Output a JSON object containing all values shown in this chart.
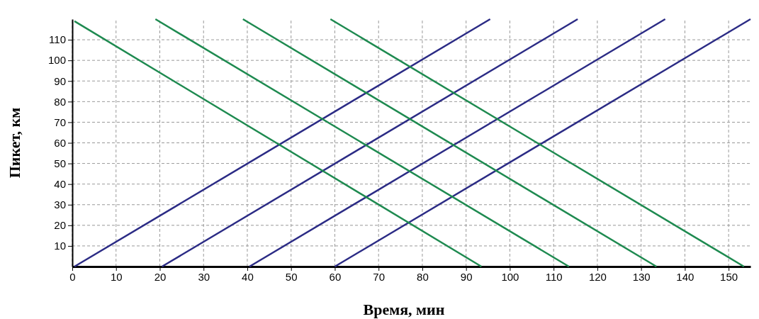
{
  "chart_data": {
    "type": "line",
    "xlabel": "Время, мин",
    "ylabel": "Пикет, км",
    "xlim": [
      0,
      155
    ],
    "ylim": [
      0,
      120
    ],
    "xticks": [
      0,
      10,
      20,
      30,
      40,
      50,
      60,
      70,
      80,
      90,
      100,
      110,
      120,
      130,
      140,
      150
    ],
    "yticks": [
      10,
      20,
      30,
      40,
      50,
      60,
      70,
      80,
      90,
      100,
      110
    ],
    "grid": true,
    "line_style": "solid",
    "marker": "none",
    "series": [
      {
        "color": "#2b2b85",
        "x": [
          0.5,
          95.5
        ],
        "values": [
          0,
          120
        ]
      },
      {
        "color": "#2b2b85",
        "x": [
          20.5,
          115.5
        ],
        "values": [
          0,
          120
        ]
      },
      {
        "color": "#2b2b85",
        "x": [
          40.5,
          135.5
        ],
        "values": [
          0,
          120
        ]
      },
      {
        "color": "#2b2b85",
        "x": [
          60,
          155
        ],
        "values": [
          0,
          120
        ]
      },
      {
        "color": "#1e8a50",
        "x": [
          0.5,
          93.5
        ],
        "values": [
          119,
          0
        ]
      },
      {
        "color": "#1e8a50",
        "x": [
          19,
          113.5
        ],
        "values": [
          120,
          0
        ]
      },
      {
        "color": "#1e8a50",
        "x": [
          39,
          133.5
        ],
        "values": [
          120,
          0
        ]
      },
      {
        "color": "#1e8a50",
        "x": [
          59,
          153.5
        ],
        "values": [
          120,
          0
        ]
      }
    ]
  }
}
